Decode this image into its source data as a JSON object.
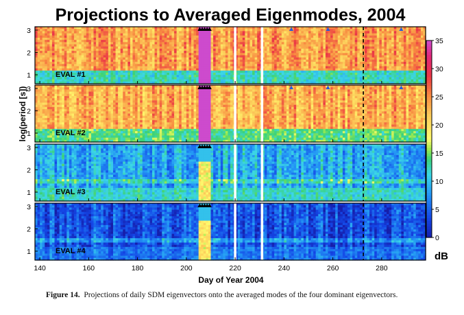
{
  "chart_data": {
    "type": "heatmap",
    "title": "Projections to Averaged Eigenmodes, 2004",
    "xlabel": "Day of Year 2004",
    "ylabel": "log(period [s])",
    "xlim": [
      138,
      298
    ],
    "ylim": [
      0.6,
      3.15
    ],
    "xticks": [
      "140",
      "160",
      "180",
      "200",
      "220",
      "240",
      "260",
      "280"
    ],
    "xtick_values": [
      140,
      160,
      180,
      200,
      220,
      240,
      260,
      280
    ],
    "yticks": [
      "1",
      "2",
      "3"
    ],
    "ytick_values": [
      1,
      2,
      3
    ],
    "colorbar": {
      "label": "dB",
      "min": 0,
      "max": 35,
      "ticks": [
        "0",
        "5",
        "10",
        "15",
        "20",
        "25",
        "30",
        "35"
      ],
      "tick_values": [
        0,
        5,
        10,
        15,
        20,
        25,
        30,
        35
      ]
    },
    "panels": [
      {
        "label": "EVAL #1",
        "base_level_db": 24,
        "low_period_level_db": 12
      },
      {
        "label": "EVAL #2",
        "base_level_db": 23,
        "low_period_level_db": 14
      },
      {
        "label": "EVAL #3",
        "base_level_db": 9,
        "low_period_level_db": 12
      },
      {
        "label": "EVAL #4",
        "base_level_db": 4,
        "low_period_level_db": 6
      }
    ],
    "data_gap_days": [
      219.5,
      220.5,
      230.5,
      231.5
    ],
    "saturated_interval_days": [
      205,
      209.5
    ],
    "event_markers_black_days": [
      205.5,
      206.5,
      207.5,
      208.5,
      209.5
    ],
    "event_markers_blue_days": [
      243,
      258,
      288
    ],
    "dashed_line_day": 272.5
  },
  "caption": {
    "label": "Figure 14.",
    "text": "Projections of daily SDM eigenvectors onto the averaged modes of the four dominant eigenvectors."
  },
  "colors": {
    "event_marker_black": "#000000",
    "event_marker_blue": "#2a5bd7",
    "data_gap": "#ffffff",
    "saturated": "#d24fd0"
  }
}
